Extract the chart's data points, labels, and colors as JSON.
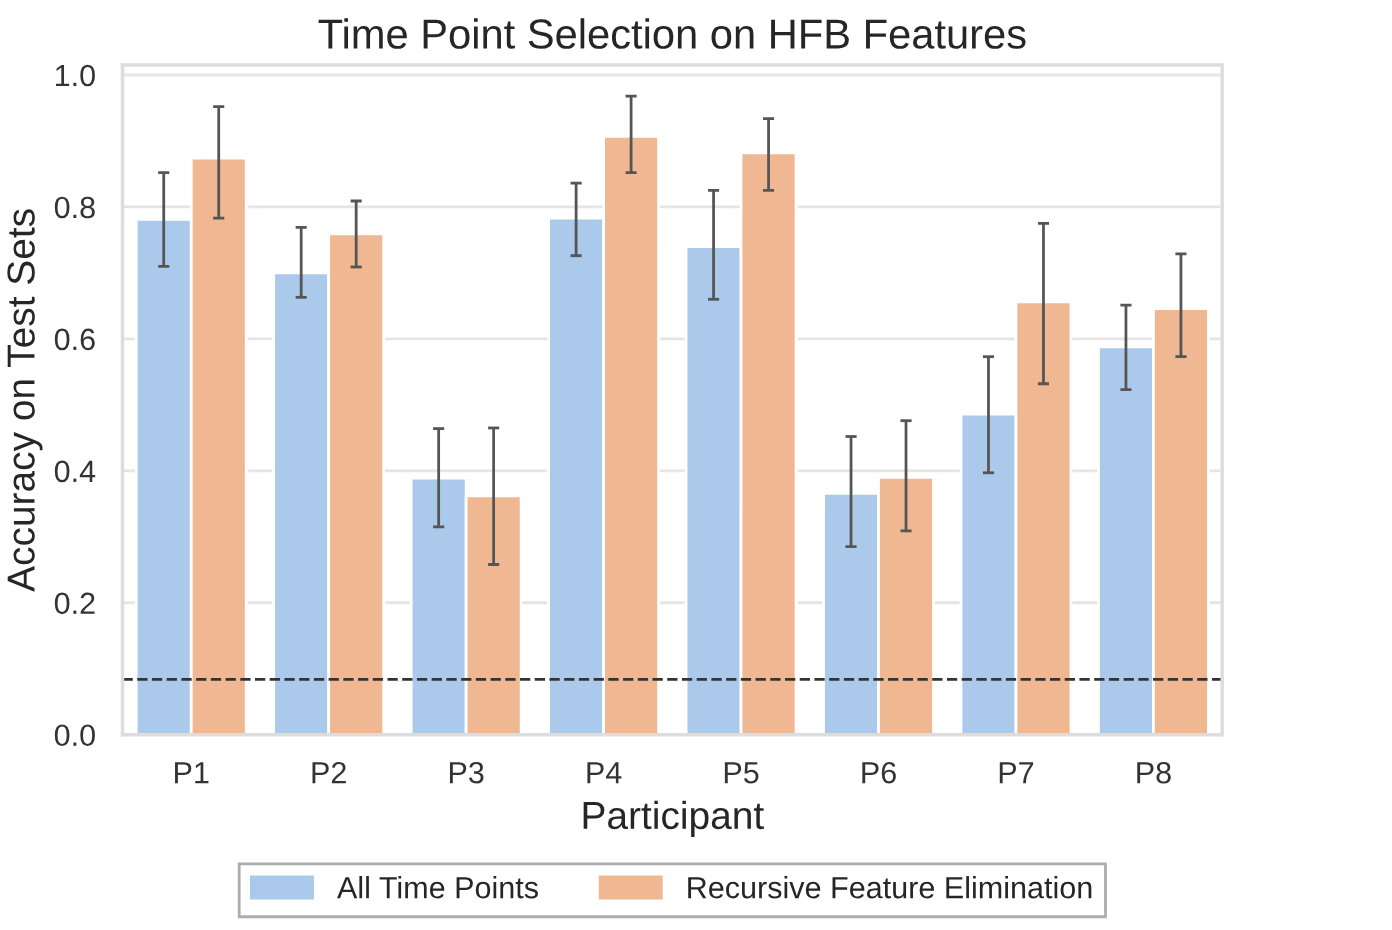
{
  "chart_data": {
    "type": "bar",
    "title": "Time Point Selection on HFB Features",
    "xlabel": "Participant",
    "ylabel": "Accuracy on Test Sets",
    "categories": [
      "P1",
      "P2",
      "P3",
      "P4",
      "P5",
      "P6",
      "P7",
      "P8"
    ],
    "series": [
      {
        "name": "All Time Points",
        "color": "#abc9eb",
        "values": [
          0.781,
          0.7,
          0.389,
          0.783,
          0.74,
          0.366,
          0.486,
          0.588
        ],
        "errors": [
          [
            0.71,
            0.852
          ],
          [
            0.663,
            0.769
          ],
          [
            0.315,
            0.464
          ],
          [
            0.726,
            0.836
          ],
          [
            0.66,
            0.825
          ],
          [
            0.285,
            0.452
          ],
          [
            0.397,
            0.573
          ],
          [
            0.523,
            0.651
          ]
        ]
      },
      {
        "name": "Recursive Feature Elimination",
        "color": "#efb792",
        "values": [
          0.874,
          0.759,
          0.362,
          0.907,
          0.882,
          0.39,
          0.656,
          0.646
        ],
        "errors": [
          [
            0.783,
            0.952
          ],
          [
            0.709,
            0.809
          ],
          [
            0.258,
            0.465
          ],
          [
            0.852,
            0.968
          ],
          [
            0.825,
            0.934
          ],
          [
            0.309,
            0.476
          ],
          [
            0.532,
            0.775
          ],
          [
            0.573,
            0.729
          ]
        ]
      }
    ],
    "ylim": [
      0,
      1.015
    ],
    "yticks": [
      {
        "value": 0,
        "label": "0.0"
      },
      0.2,
      0.4,
      0.6,
      0.8,
      {
        "value": 1,
        "label": "1.0"
      }
    ],
    "ref_lines": [
      {
        "axis": "y",
        "value": 0.084,
        "color": "#333333",
        "line_style": "dashed"
      }
    ],
    "grid": "y",
    "legend": "bottom"
  }
}
